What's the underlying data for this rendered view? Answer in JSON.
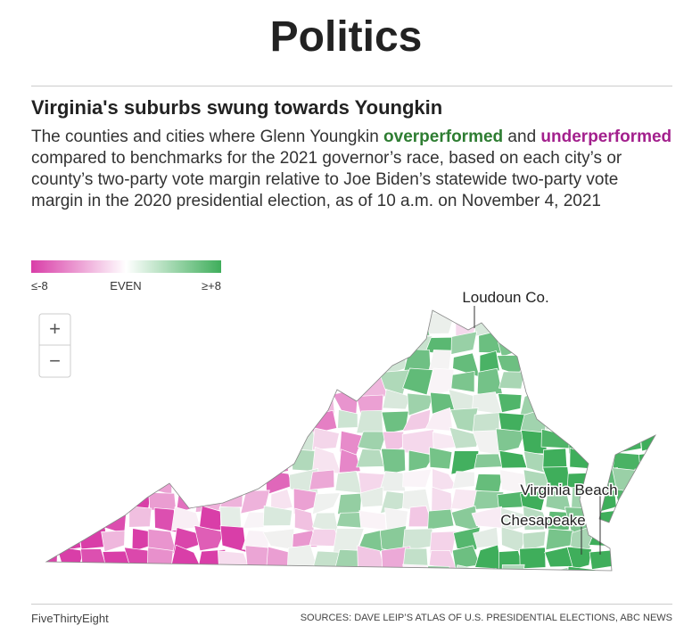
{
  "header": {
    "title": "Politics"
  },
  "article": {
    "title": "Virginia's suburbs swung towards Youngkin",
    "description": [
      "The counties and cities where Glenn Youngkin ",
      "overperformed",
      " and ",
      "underperformed",
      " compared to benchmarks for the 2021 governor’s race, based on each city’s or county’s two-party vote margin relative to Joe Biden’s statewide two-party vote margin in the 2020 presidential election, as of 10 a.m. on November 4, 2021"
    ]
  },
  "legend": {
    "labels": [
      "≤-8",
      "EVEN",
      "≥+8"
    ]
  },
  "map": {
    "labels": [
      "Loudoun Co.",
      "Virginia Beach",
      "Chesapeake"
    ],
    "zoom": [
      "+",
      "−"
    ]
  },
  "footer": {
    "brand": "FiveThirtyEight",
    "sources": "SOURCES: DAVE LEIP’S ATLAS OF U.S. PRESIDENTIAL ELECTIONS, ABC NEWS"
  }
}
